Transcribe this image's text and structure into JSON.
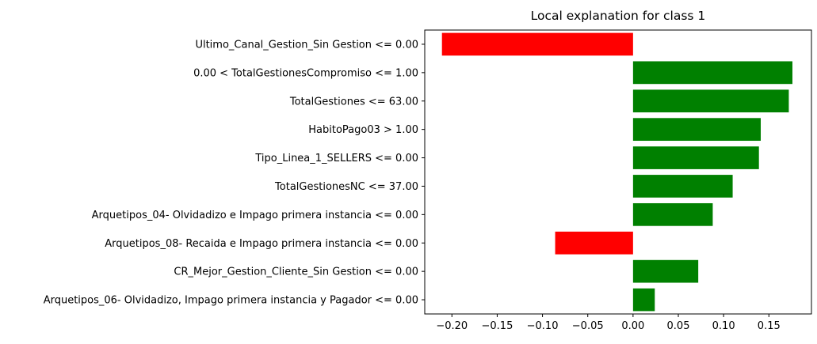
{
  "chart_data": {
    "type": "bar",
    "orientation": "horizontal",
    "title": "Local explanation for class 1",
    "xlabel": "",
    "ylabel": "",
    "categories": [
      "Ultimo_Canal_Gestion_Sin Gestion <= 0.00",
      "0.00 < TotalGestionesCompromiso <= 1.00",
      "TotalGestiones <= 63.00",
      "HabitoPago03 > 1.00",
      "Tipo_Linea_1_SELLERS <= 0.00",
      "TotalGestionesNC <= 37.00",
      "Arquetipos_04- Olvidadizo e Impago primera instancia <= 0.00",
      "Arquetipos_08- Recaida e Impago primera instancia <= 0.00",
      "CR_Mejor_Gestion_Cliente_Sin Gestion <= 0.00",
      "Arquetipos_06- Olvidadizo, Impago primera instancia y Pagador <= 0.00"
    ],
    "values": [
      -0.211,
      0.176,
      0.172,
      0.141,
      0.139,
      0.11,
      0.088,
      -0.086,
      0.072,
      0.024
    ],
    "xlim": [
      -0.23,
      0.197
    ],
    "xticks": [
      -0.2,
      -0.15,
      -0.1,
      -0.05,
      0.0,
      0.05,
      0.1,
      0.15
    ],
    "xtick_labels": [
      "−0.20",
      "−0.15",
      "−0.10",
      "−0.05",
      "0.00",
      "0.05",
      "0.10",
      "0.15"
    ],
    "grid": false,
    "legend": "none",
    "colors": {
      "positive": "#008000",
      "negative": "#ff0000"
    }
  }
}
